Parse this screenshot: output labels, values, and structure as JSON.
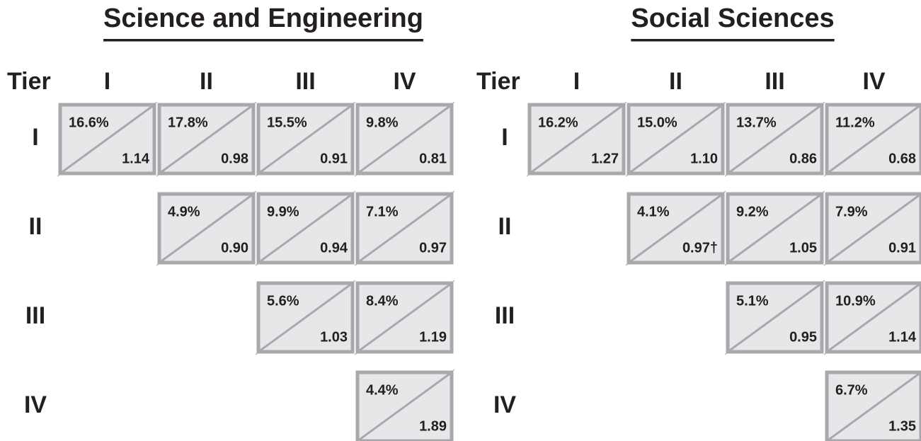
{
  "panels": [
    {
      "title": "Science and Engineering",
      "tier_label": "Tier",
      "columns": [
        "I",
        "II",
        "III",
        "IV"
      ],
      "rows": [
        {
          "label": "I",
          "cells": [
            {
              "percent": "16.6%",
              "ratio": "1.14"
            },
            {
              "percent": "17.8%",
              "ratio": "0.98"
            },
            {
              "percent": "15.5%",
              "ratio": "0.91"
            },
            {
              "percent": "9.8%",
              "ratio": "0.81"
            }
          ]
        },
        {
          "label": "II",
          "cells": [
            {
              "percent": "4.9%",
              "ratio": "0.90"
            },
            {
              "percent": "9.9%",
              "ratio": "0.94"
            },
            {
              "percent": "7.1%",
              "ratio": "0.97"
            }
          ]
        },
        {
          "label": "III",
          "cells": [
            {
              "percent": "5.6%",
              "ratio": "1.03"
            },
            {
              "percent": "8.4%",
              "ratio": "1.19"
            }
          ]
        },
        {
          "label": "IV",
          "cells": [
            {
              "percent": "4.4%",
              "ratio": "1.89"
            }
          ]
        }
      ]
    },
    {
      "title": "Social Sciences",
      "tier_label": "Tier",
      "columns": [
        "I",
        "II",
        "III",
        "IV"
      ],
      "rows": [
        {
          "label": "I",
          "cells": [
            {
              "percent": "16.2%",
              "ratio": "1.27"
            },
            {
              "percent": "15.0%",
              "ratio": "1.10"
            },
            {
              "percent": "13.7%",
              "ratio": "0.86"
            },
            {
              "percent": "11.2%",
              "ratio": "0.68"
            }
          ]
        },
        {
          "label": "II",
          "cells": [
            {
              "percent": "4.1%",
              "ratio": "0.97†"
            },
            {
              "percent": "9.2%",
              "ratio": "1.05"
            },
            {
              "percent": "7.9%",
              "ratio": "0.91"
            }
          ]
        },
        {
          "label": "III",
          "cells": [
            {
              "percent": "5.1%",
              "ratio": "0.95"
            },
            {
              "percent": "10.9%",
              "ratio": "1.14"
            }
          ]
        },
        {
          "label": "IV",
          "cells": [
            {
              "percent": "6.7%",
              "ratio": "1.35"
            }
          ]
        }
      ]
    }
  ]
}
